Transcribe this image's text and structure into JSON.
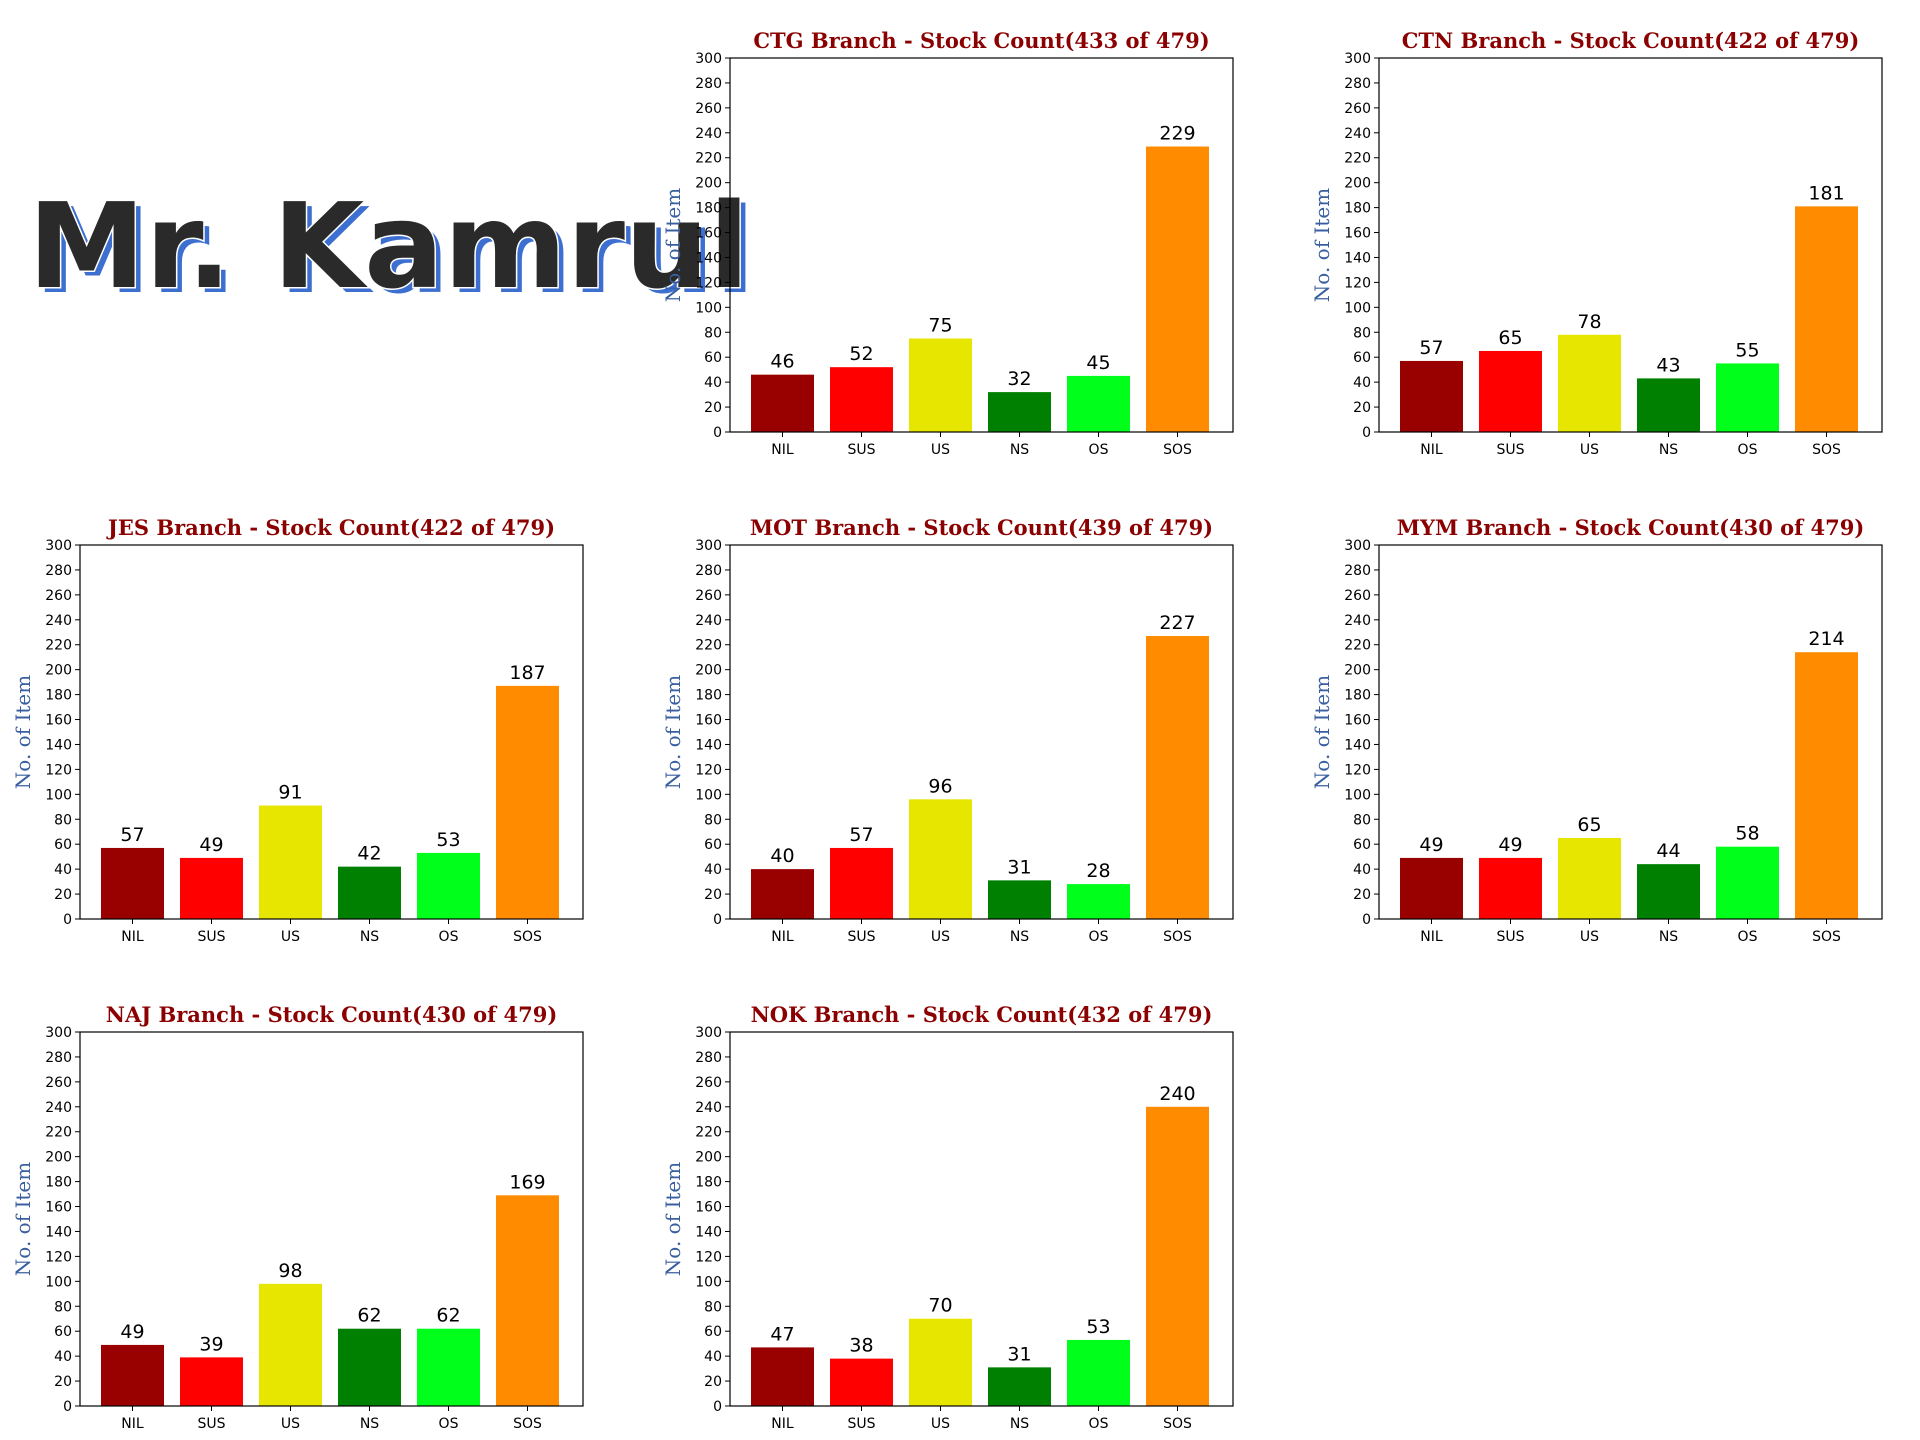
{
  "banner": {
    "text": "Mr. Kamrul",
    "fill": "#2a2a2a",
    "outline": "#ffffff",
    "shadow": "#3c6fd0"
  },
  "chart_data": [
    {
      "type": "bar",
      "title": "CTG Branch - Stock Count(433 of 479)",
      "ylabel": "No. of Item",
      "categories": [
        "NIL",
        "SUS",
        "US",
        "NS",
        "OS",
        "SOS"
      ],
      "values": [
        46,
        52,
        75,
        32,
        45,
        229
      ],
      "ylim": [
        0,
        300
      ]
    },
    {
      "type": "bar",
      "title": "CTN Branch - Stock Count(422 of 479)",
      "ylabel": "No. of Item",
      "categories": [
        "NIL",
        "SUS",
        "US",
        "NS",
        "OS",
        "SOS"
      ],
      "values": [
        57,
        65,
        78,
        43,
        55,
        181
      ],
      "ylim": [
        0,
        300
      ]
    },
    {
      "type": "bar",
      "title": "JES Branch - Stock Count(422 of 479)",
      "ylabel": "No. of Item",
      "categories": [
        "NIL",
        "SUS",
        "US",
        "NS",
        "OS",
        "SOS"
      ],
      "values": [
        57,
        49,
        91,
        42,
        53,
        187
      ],
      "ylim": [
        0,
        300
      ]
    },
    {
      "type": "bar",
      "title": "MOT Branch - Stock Count(439 of 479)",
      "ylabel": "No. of Item",
      "categories": [
        "NIL",
        "SUS",
        "US",
        "NS",
        "OS",
        "SOS"
      ],
      "values": [
        40,
        57,
        96,
        31,
        28,
        227
      ],
      "ylim": [
        0,
        300
      ]
    },
    {
      "type": "bar",
      "title": "MYM Branch - Stock Count(430 of 479)",
      "ylabel": "No. of Item",
      "categories": [
        "NIL",
        "SUS",
        "US",
        "NS",
        "OS",
        "SOS"
      ],
      "values": [
        49,
        49,
        65,
        44,
        58,
        214
      ],
      "ylim": [
        0,
        300
      ]
    },
    {
      "type": "bar",
      "title": "NAJ Branch - Stock Count(430 of 479)",
      "ylabel": "No. of Item",
      "categories": [
        "NIL",
        "SUS",
        "US",
        "NS",
        "OS",
        "SOS"
      ],
      "values": [
        49,
        39,
        98,
        62,
        62,
        169
      ],
      "ylim": [
        0,
        300
      ]
    },
    {
      "type": "bar",
      "title": "NOK Branch - Stock Count(432 of 479)",
      "ylabel": "No. of Item",
      "categories": [
        "NIL",
        "SUS",
        "US",
        "NS",
        "OS",
        "SOS"
      ],
      "values": [
        47,
        38,
        70,
        31,
        53,
        240
      ],
      "ylim": [
        0,
        300
      ]
    }
  ],
  "bar_colors": [
    "#990000",
    "#ff0000",
    "#e6e600",
    "#008000",
    "#00ff1a",
    "#ff8c00"
  ],
  "ytick_step": 20
}
